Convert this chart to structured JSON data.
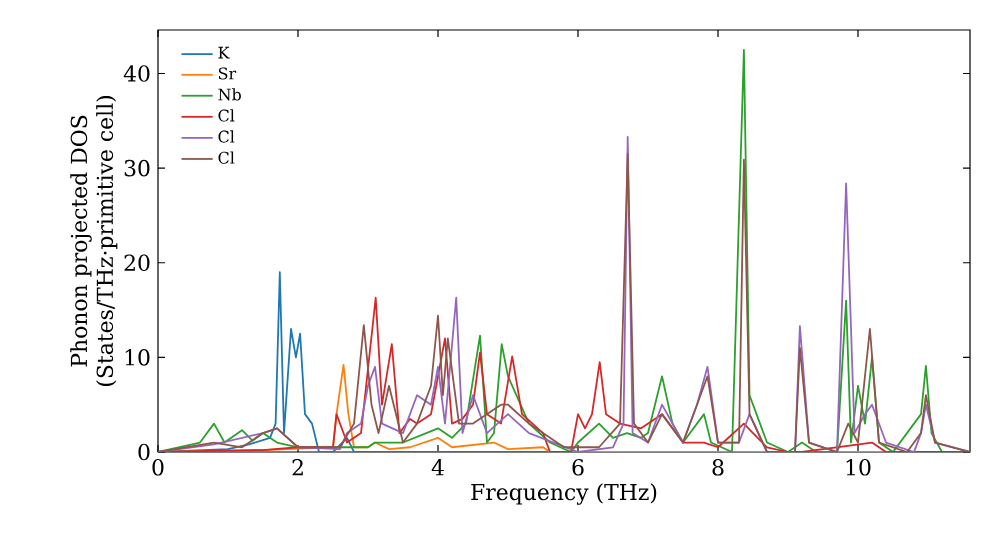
{
  "chart_data": {
    "type": "line",
    "xlabel": "Frequency (THz)",
    "ylabel": "Phonon projected DOS\n(States/THz·primitive cell)",
    "xlim": [
      0,
      11.6
    ],
    "ylim": [
      0,
      44.6
    ],
    "xticks": [
      0,
      2,
      4,
      6,
      8,
      10
    ],
    "yticks": [
      0,
      10,
      20,
      30,
      40
    ],
    "legend": "top left",
    "line_style": "solid",
    "series": [
      {
        "name": "K",
        "color": "#1f77b4",
        "x": [
          0,
          1.0,
          1.3,
          1.6,
          1.68,
          1.74,
          1.8,
          1.9,
          1.97,
          2.03,
          2.1,
          2.2,
          2.3,
          2.5,
          2.7,
          2.8,
          3.0,
          11.6
        ],
        "values": [
          0,
          0.3,
          0.8,
          1.5,
          3,
          19,
          2,
          13,
          10,
          12.5,
          4,
          3,
          0,
          0,
          1.5,
          0,
          0,
          0
        ]
      },
      {
        "name": "Sr",
        "color": "#ff7f0e",
        "x": [
          0,
          1.5,
          2.5,
          2.55,
          2.65,
          2.72,
          2.8,
          3.0,
          3.1,
          3.3,
          3.6,
          4.0,
          4.2,
          4.8,
          5.0,
          5.5,
          5.6,
          11.6
        ],
        "values": [
          0,
          0.2,
          0.5,
          4,
          9.2,
          4,
          0.5,
          0.5,
          1,
          0.3,
          0.5,
          1.5,
          0.5,
          1,
          0.3,
          0.5,
          0,
          0
        ]
      },
      {
        "name": "Nb",
        "color": "#2ca02c",
        "x": [
          0,
          0.6,
          0.8,
          0.95,
          1.2,
          1.35,
          1.5,
          1.7,
          2.0,
          3.0,
          3.1,
          3.5,
          4.0,
          4.2,
          4.4,
          4.6,
          4.7,
          4.8,
          4.91,
          5.0,
          5.3,
          5.6,
          5.9,
          6.0,
          6.3,
          6.5,
          6.7,
          6.9,
          7.0,
          7.2,
          7.35,
          7.5,
          7.8,
          7.9,
          8.2,
          8.37,
          8.45,
          8.55,
          8.7,
          9.0,
          9.2,
          9.4,
          9.7,
          9.83,
          9.9,
          10.0,
          10.1,
          10.2,
          10.3,
          10.5,
          10.8,
          10.9,
          10.97,
          11.05,
          11.2,
          11.6
        ],
        "values": [
          0,
          1,
          3,
          1,
          2.3,
          1.2,
          2,
          1,
          0.5,
          0.5,
          1,
          1,
          2.5,
          1.5,
          3,
          12.3,
          1,
          2,
          11.4,
          8,
          3,
          1,
          0,
          1,
          3,
          1.5,
          2,
          1.5,
          2,
          8,
          3,
          1,
          4,
          1,
          0,
          42.5,
          6,
          4,
          1,
          0,
          1,
          0,
          0,
          16,
          1,
          7,
          3,
          10,
          1,
          0,
          3,
          4,
          9.1,
          2,
          0,
          0
        ]
      },
      {
        "name": "Cl",
        "color": "#d62728",
        "x": [
          0,
          1.5,
          2.0,
          2.5,
          2.55,
          2.7,
          2.9,
          3.11,
          3.2,
          3.34,
          3.45,
          3.6,
          3.7,
          3.9,
          4.1,
          4.2,
          4.35,
          4.5,
          4.6,
          4.7,
          4.9,
          5.06,
          5.2,
          5.5,
          5.6,
          5.9,
          6.0,
          6.1,
          6.2,
          6.31,
          6.4,
          6.6,
          6.9,
          7.2,
          7.5,
          7.8,
          8.0,
          8.37,
          8.5,
          8.7,
          9.0,
          9.2,
          10.2,
          10.4,
          11.6
        ],
        "values": [
          0,
          0.2,
          0.5,
          0.5,
          4,
          1,
          2,
          16.3,
          5,
          11.4,
          2,
          3.5,
          3,
          4,
          12,
          3,
          3.5,
          5,
          10.5,
          4,
          3,
          10.1,
          4,
          2,
          0,
          0,
          4,
          2.5,
          4,
          9.5,
          4,
          3,
          2.5,
          4,
          1,
          1,
          0.5,
          3,
          2,
          0.5,
          0,
          0,
          1,
          0,
          0
        ]
      },
      {
        "name": "Cl",
        "color": "#9467bd",
        "x": [
          0,
          0.8,
          1.5,
          1.7,
          2.0,
          2.6,
          2.7,
          2.9,
          3.0,
          3.1,
          3.2,
          3.5,
          3.7,
          3.9,
          4.0,
          4.1,
          4.26,
          4.35,
          4.5,
          4.7,
          5.0,
          5.3,
          6.0,
          6.5,
          6.65,
          6.71,
          6.78,
          7.0,
          7.2,
          7.5,
          7.7,
          7.85,
          8.0,
          8.3,
          8.37,
          8.45,
          8.7,
          9.1,
          9.17,
          9.3,
          9.7,
          9.83,
          9.95,
          10.1,
          10.2,
          10.4,
          10.8,
          10.9,
          10.97,
          11.1,
          11.6
        ],
        "values": [
          0,
          0.8,
          2,
          2.5,
          0.5,
          0.3,
          2,
          3,
          7,
          9,
          3,
          2,
          6,
          5,
          9,
          3,
          16.3,
          2,
          6,
          2,
          4,
          2,
          0,
          0.5,
          3,
          33.3,
          2,
          1,
          5,
          1,
          5,
          9,
          1,
          1,
          null,
          4,
          0,
          0,
          13.3,
          1,
          0,
          28.4,
          2,
          4,
          5,
          1,
          0,
          2,
          5,
          1,
          0
        ]
      },
      {
        "name": "Cl",
        "color": "#8c564b",
        "x": [
          0,
          0.8,
          1.2,
          1.5,
          1.7,
          2.0,
          2.6,
          2.8,
          2.94,
          3.05,
          3.15,
          3.3,
          3.5,
          3.7,
          3.9,
          4.0,
          4.07,
          4.14,
          4.3,
          4.5,
          4.9,
          5.0,
          5.3,
          5.8,
          6.3,
          6.6,
          6.71,
          6.8,
          7.0,
          7.2,
          7.5,
          7.85,
          8.0,
          8.3,
          8.37,
          8.45,
          8.7,
          9.1,
          9.17,
          9.3,
          9.7,
          9.86,
          10.0,
          10.17,
          10.3,
          10.7,
          10.9,
          10.97,
          11.1,
          11.6
        ],
        "values": [
          0,
          1,
          0.5,
          2,
          2.5,
          0.5,
          0.5,
          3,
          13.4,
          5,
          2,
          7,
          1,
          3,
          7,
          14.4,
          6,
          12,
          3,
          3,
          5,
          5,
          3,
          0.5,
          0.5,
          3,
          31.5,
          3,
          1,
          4,
          1,
          8,
          1,
          1,
          30.9,
          4,
          0,
          0,
          11,
          1,
          0,
          3,
          1,
          13,
          1,
          0,
          2,
          6,
          1,
          0
        ]
      }
    ]
  }
}
